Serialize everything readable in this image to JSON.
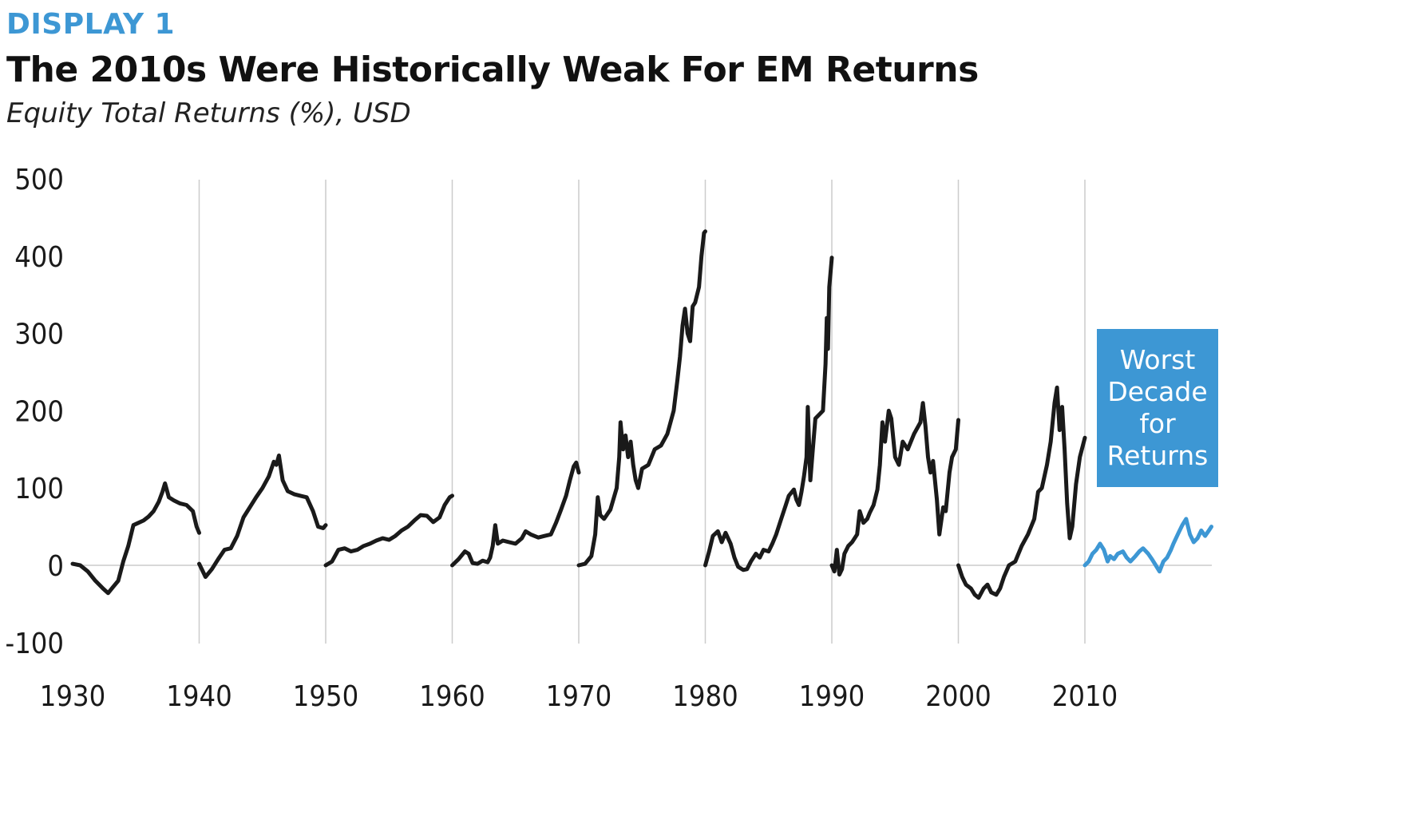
{
  "header": {
    "display_label": "DISPLAY 1",
    "title": "The 2010s Were Historically Weak For EM Returns",
    "subtitle": "Equity Total Returns (%), USD"
  },
  "annotation": {
    "text": "Worst Decade for Returns",
    "color": "#3d97d4"
  },
  "colors": {
    "line": "#1a1a1a",
    "highlight": "#3d97d4",
    "grid": "#cccccc"
  },
  "chart_data": {
    "type": "line",
    "title": "The 2010s Were Historically Weak For EM Returns",
    "subtitle": "Equity Total Returns (%), USD",
    "xlim": [
      1930,
      2020
    ],
    "ylim": [
      -100,
      500
    ],
    "x_ticks": [
      "1930",
      "1940",
      "1950",
      "1960",
      "1970",
      "1980",
      "1990",
      "2000",
      "2010"
    ],
    "y_ticks": [
      "500",
      "400",
      "300",
      "200",
      "100",
      "0",
      "-100"
    ],
    "grid": "vertical lines at decade starts; horizontal line at 0",
    "series": [
      {
        "decade": "1930s",
        "color": "#1a1a1a",
        "points": [
          [
            1930,
            2
          ],
          [
            1930.6,
            0
          ],
          [
            1931.2,
            -8
          ],
          [
            1931.8,
            -20
          ],
          [
            1932.4,
            -30
          ],
          [
            1932.8,
            -36
          ],
          [
            1933.2,
            -28
          ],
          [
            1933.6,
            -20
          ],
          [
            1934,
            5
          ],
          [
            1934.4,
            25
          ],
          [
            1934.8,
            52
          ],
          [
            1935.2,
            55
          ],
          [
            1935.6,
            58
          ],
          [
            1936,
            63
          ],
          [
            1936.4,
            70
          ],
          [
            1936.8,
            82
          ],
          [
            1937.1,
            95
          ],
          [
            1937.3,
            106
          ],
          [
            1937.6,
            88
          ],
          [
            1938,
            84
          ],
          [
            1938.5,
            80
          ],
          [
            1939,
            78
          ],
          [
            1939.5,
            70
          ],
          [
            1939.8,
            50
          ],
          [
            1940,
            42
          ]
        ]
      },
      {
        "decade": "1940s",
        "color": "#1a1a1a",
        "points": [
          [
            1940,
            2
          ],
          [
            1940.5,
            -15
          ],
          [
            1941,
            -5
          ],
          [
            1941.5,
            8
          ],
          [
            1942,
            20
          ],
          [
            1942.5,
            22
          ],
          [
            1943,
            38
          ],
          [
            1943.5,
            62
          ],
          [
            1944,
            75
          ],
          [
            1944.5,
            88
          ],
          [
            1945,
            100
          ],
          [
            1945.5,
            115
          ],
          [
            1945.9,
            134
          ],
          [
            1946.1,
            130
          ],
          [
            1946.3,
            142
          ],
          [
            1946.6,
            110
          ],
          [
            1947,
            96
          ],
          [
            1947.5,
            92
          ],
          [
            1948,
            90
          ],
          [
            1948.5,
            88
          ],
          [
            1949,
            70
          ],
          [
            1949.4,
            50
          ],
          [
            1949.8,
            48
          ],
          [
            1950,
            52
          ]
        ]
      },
      {
        "decade": "1950s",
        "color": "#1a1a1a",
        "points": [
          [
            1950,
            0
          ],
          [
            1950.5,
            5
          ],
          [
            1951,
            20
          ],
          [
            1951.5,
            22
          ],
          [
            1952,
            18
          ],
          [
            1952.5,
            20
          ],
          [
            1953,
            25
          ],
          [
            1953.5,
            28
          ],
          [
            1954,
            32
          ],
          [
            1954.5,
            35
          ],
          [
            1955,
            33
          ],
          [
            1955.5,
            38
          ],
          [
            1956,
            45
          ],
          [
            1956.5,
            50
          ],
          [
            1957,
            58
          ],
          [
            1957.5,
            65
          ],
          [
            1958,
            64
          ],
          [
            1958.5,
            56
          ],
          [
            1959,
            62
          ],
          [
            1959.4,
            78
          ],
          [
            1959.8,
            88
          ],
          [
            1960,
            90
          ]
        ]
      },
      {
        "decade": "1960s",
        "color": "#1a1a1a",
        "points": [
          [
            1960,
            0
          ],
          [
            1960.5,
            8
          ],
          [
            1961,
            18
          ],
          [
            1961.3,
            15
          ],
          [
            1961.6,
            3
          ],
          [
            1962,
            2
          ],
          [
            1962.4,
            6
          ],
          [
            1962.8,
            4
          ],
          [
            1963,
            10
          ],
          [
            1963.2,
            25
          ],
          [
            1963.4,
            52
          ],
          [
            1963.6,
            28
          ],
          [
            1964,
            32
          ],
          [
            1964.5,
            30
          ],
          [
            1965,
            28
          ],
          [
            1965.5,
            35
          ],
          [
            1965.8,
            44
          ],
          [
            1966.2,
            40
          ],
          [
            1966.8,
            36
          ],
          [
            1967.3,
            38
          ],
          [
            1967.8,
            40
          ],
          [
            1968.2,
            55
          ],
          [
            1968.6,
            72
          ],
          [
            1969,
            90
          ],
          [
            1969.3,
            110
          ],
          [
            1969.6,
            128
          ],
          [
            1969.8,
            133
          ],
          [
            1970,
            120
          ]
        ]
      },
      {
        "decade": "1970s",
        "color": "#1a1a1a",
        "points": [
          [
            1970,
            0
          ],
          [
            1970.5,
            2
          ],
          [
            1971,
            12
          ],
          [
            1971.3,
            40
          ],
          [
            1971.5,
            88
          ],
          [
            1971.7,
            65
          ],
          [
            1972,
            60
          ],
          [
            1972.5,
            72
          ],
          [
            1973,
            100
          ],
          [
            1973.2,
            140
          ],
          [
            1973.3,
            185
          ],
          [
            1973.5,
            150
          ],
          [
            1973.7,
            168
          ],
          [
            1973.9,
            140
          ],
          [
            1974.1,
            160
          ],
          [
            1974.3,
            130
          ],
          [
            1974.5,
            110
          ],
          [
            1974.7,
            100
          ],
          [
            1975,
            125
          ],
          [
            1975.5,
            130
          ],
          [
            1976,
            150
          ],
          [
            1976.5,
            155
          ],
          [
            1977,
            170
          ],
          [
            1977.5,
            200
          ],
          [
            1977.8,
            240
          ],
          [
            1978,
            270
          ],
          [
            1978.2,
            310
          ],
          [
            1978.4,
            332
          ],
          [
            1978.6,
            300
          ],
          [
            1978.8,
            290
          ],
          [
            1979,
            335
          ],
          [
            1979.2,
            340
          ],
          [
            1979.5,
            360
          ],
          [
            1979.7,
            400
          ],
          [
            1979.9,
            430
          ],
          [
            1980,
            432
          ]
        ]
      },
      {
        "decade": "1980s",
        "color": "#1a1a1a",
        "points": [
          [
            1980,
            0
          ],
          [
            1980.3,
            18
          ],
          [
            1980.6,
            38
          ],
          [
            1981,
            44
          ],
          [
            1981.3,
            30
          ],
          [
            1981.6,
            42
          ],
          [
            1982,
            28
          ],
          [
            1982.3,
            10
          ],
          [
            1982.6,
            -2
          ],
          [
            1983,
            -6
          ],
          [
            1983.3,
            -5
          ],
          [
            1983.6,
            5
          ],
          [
            1984,
            15
          ],
          [
            1984.3,
            10
          ],
          [
            1984.6,
            20
          ],
          [
            1985,
            18
          ],
          [
            1985.3,
            28
          ],
          [
            1985.6,
            40
          ],
          [
            1986,
            60
          ],
          [
            1986.3,
            75
          ],
          [
            1986.6,
            90
          ],
          [
            1987,
            98
          ],
          [
            1987.2,
            85
          ],
          [
            1987.4,
            78
          ],
          [
            1987.6,
            95
          ],
          [
            1987.8,
            115
          ],
          [
            1988,
            140
          ],
          [
            1988.1,
            205
          ],
          [
            1988.3,
            110
          ],
          [
            1988.5,
            150
          ],
          [
            1988.7,
            190
          ],
          [
            1989,
            195
          ],
          [
            1989.3,
            200
          ],
          [
            1989.5,
            260
          ],
          [
            1989.6,
            320
          ],
          [
            1989.7,
            280
          ],
          [
            1989.8,
            360
          ],
          [
            1990,
            398
          ]
        ]
      },
      {
        "decade": "1990s",
        "color": "#1a1a1a",
        "points": [
          [
            1990,
            0
          ],
          [
            1990.2,
            -8
          ],
          [
            1990.4,
            20
          ],
          [
            1990.6,
            -12
          ],
          [
            1990.8,
            -5
          ],
          [
            1991,
            15
          ],
          [
            1991.3,
            25
          ],
          [
            1991.6,
            30
          ],
          [
            1992,
            40
          ],
          [
            1992.2,
            70
          ],
          [
            1992.5,
            55
          ],
          [
            1992.8,
            60
          ],
          [
            1993,
            68
          ],
          [
            1993.3,
            78
          ],
          [
            1993.6,
            98
          ],
          [
            1993.8,
            130
          ],
          [
            1994,
            185
          ],
          [
            1994.2,
            160
          ],
          [
            1994.5,
            200
          ],
          [
            1994.7,
            190
          ],
          [
            1995,
            140
          ],
          [
            1995.3,
            130
          ],
          [
            1995.6,
            160
          ],
          [
            1996,
            150
          ],
          [
            1996.5,
            170
          ],
          [
            1997,
            185
          ],
          [
            1997.2,
            210
          ],
          [
            1997.4,
            180
          ],
          [
            1997.6,
            140
          ],
          [
            1997.8,
            120
          ],
          [
            1998,
            135
          ],
          [
            1998.3,
            85
          ],
          [
            1998.5,
            40
          ],
          [
            1998.8,
            75
          ],
          [
            1999,
            70
          ],
          [
            1999.3,
            120
          ],
          [
            1999.5,
            140
          ],
          [
            1999.8,
            150
          ],
          [
            2000,
            188
          ]
        ]
      },
      {
        "decade": "2000s",
        "color": "#1a1a1a",
        "points": [
          [
            2000,
            0
          ],
          [
            2000.3,
            -15
          ],
          [
            2000.6,
            -25
          ],
          [
            2001,
            -30
          ],
          [
            2001.3,
            -38
          ],
          [
            2001.6,
            -42
          ],
          [
            2002,
            -30
          ],
          [
            2002.3,
            -25
          ],
          [
            2002.6,
            -35
          ],
          [
            2003,
            -38
          ],
          [
            2003.3,
            -30
          ],
          [
            2003.6,
            -15
          ],
          [
            2004,
            0
          ],
          [
            2004.5,
            5
          ],
          [
            2005,
            25
          ],
          [
            2005.5,
            40
          ],
          [
            2006,
            60
          ],
          [
            2006.3,
            95
          ],
          [
            2006.6,
            100
          ],
          [
            2007,
            130
          ],
          [
            2007.3,
            160
          ],
          [
            2007.6,
            210
          ],
          [
            2007.8,
            230
          ],
          [
            2008,
            175
          ],
          [
            2008.2,
            205
          ],
          [
            2008.4,
            150
          ],
          [
            2008.6,
            80
          ],
          [
            2008.8,
            35
          ],
          [
            2009,
            50
          ],
          [
            2009.3,
            105
          ],
          [
            2009.6,
            140
          ],
          [
            2010,
            165
          ]
        ]
      },
      {
        "decade": "2010s",
        "color": "#3d97d4",
        "points": [
          [
            2010,
            0
          ],
          [
            2010.3,
            5
          ],
          [
            2010.6,
            15
          ],
          [
            2010.9,
            20
          ],
          [
            2011.2,
            28
          ],
          [
            2011.5,
            20
          ],
          [
            2011.8,
            5
          ],
          [
            2012,
            12
          ],
          [
            2012.3,
            8
          ],
          [
            2012.6,
            15
          ],
          [
            2013,
            18
          ],
          [
            2013.3,
            10
          ],
          [
            2013.6,
            5
          ],
          [
            2014,
            12
          ],
          [
            2014.3,
            18
          ],
          [
            2014.6,
            22
          ],
          [
            2015,
            15
          ],
          [
            2015.3,
            8
          ],
          [
            2015.6,
            0
          ],
          [
            2015.9,
            -8
          ],
          [
            2016.2,
            5
          ],
          [
            2016.5,
            10
          ],
          [
            2016.8,
            20
          ],
          [
            2017,
            28
          ],
          [
            2017.4,
            42
          ],
          [
            2017.7,
            52
          ],
          [
            2018,
            60
          ],
          [
            2018.3,
            40
          ],
          [
            2018.6,
            30
          ],
          [
            2018.9,
            35
          ],
          [
            2019.2,
            45
          ],
          [
            2019.5,
            38
          ],
          [
            2019.8,
            45
          ],
          [
            2020,
            50
          ]
        ]
      }
    ]
  }
}
